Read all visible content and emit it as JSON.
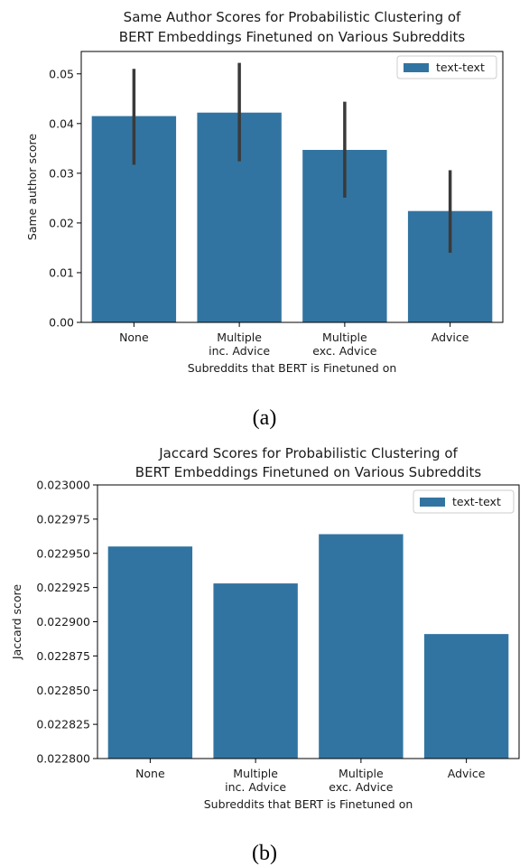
{
  "chart_data": [
    {
      "type": "bar",
      "title": [
        "Same Author Scores for Probabilistic Clustering of",
        "BERT Embeddings Finetuned on Various Subreddits"
      ],
      "xlabel": "Subreddits that BERT is Finetuned on",
      "ylabel": "Same author score",
      "categories": [
        [
          "None"
        ],
        [
          "Multiple",
          "inc. Advice"
        ],
        [
          "Multiple",
          "exc. Advice"
        ],
        [
          "Advice"
        ]
      ],
      "series": [
        {
          "name": "text-text",
          "values": [
            0.0415,
            0.0422,
            0.0347,
            0.0224
          ],
          "error_low": [
            0.0317,
            0.0324,
            0.0251,
            0.014
          ],
          "error_high": [
            0.051,
            0.0522,
            0.0444,
            0.0306
          ]
        }
      ],
      "ylim": [
        0,
        0.0545
      ],
      "yticks": [
        0.0,
        0.01,
        0.02,
        0.03,
        0.04,
        0.05
      ],
      "ytick_labels": [
        "0.00",
        "0.01",
        "0.02",
        "0.03",
        "0.04",
        "0.05"
      ],
      "legend": "top-right",
      "grid": false,
      "caption": "(a)",
      "color": "#3274a1",
      "error_color": "#3a3a3a"
    },
    {
      "type": "bar",
      "title": [
        "Jaccard Scores for Probabilistic Clustering of",
        "BERT Embeddings Finetuned on Various Subreddits"
      ],
      "xlabel": "Subreddits that BERT is Finetuned on",
      "ylabel": "Jaccard score",
      "categories": [
        [
          "None"
        ],
        [
          "Multiple",
          "inc. Advice"
        ],
        [
          "Multiple",
          "exc. Advice"
        ],
        [
          "Advice"
        ]
      ],
      "series": [
        {
          "name": "text-text",
          "values": [
            0.022955,
            0.022928,
            0.022964,
            0.022891
          ]
        }
      ],
      "ylim": [
        0.0228,
        0.023
      ],
      "yticks": [
        0.0228,
        0.022825,
        0.02285,
        0.022875,
        0.0229,
        0.022925,
        0.02295,
        0.022975,
        0.023
      ],
      "ytick_labels": [
        "0.022800",
        "0.022825",
        "0.022850",
        "0.022875",
        "0.022900",
        "0.022925",
        "0.022950",
        "0.022975",
        "0.023000"
      ],
      "legend": "top-right",
      "grid": false,
      "caption": "(b)",
      "color": "#3274a1"
    }
  ]
}
